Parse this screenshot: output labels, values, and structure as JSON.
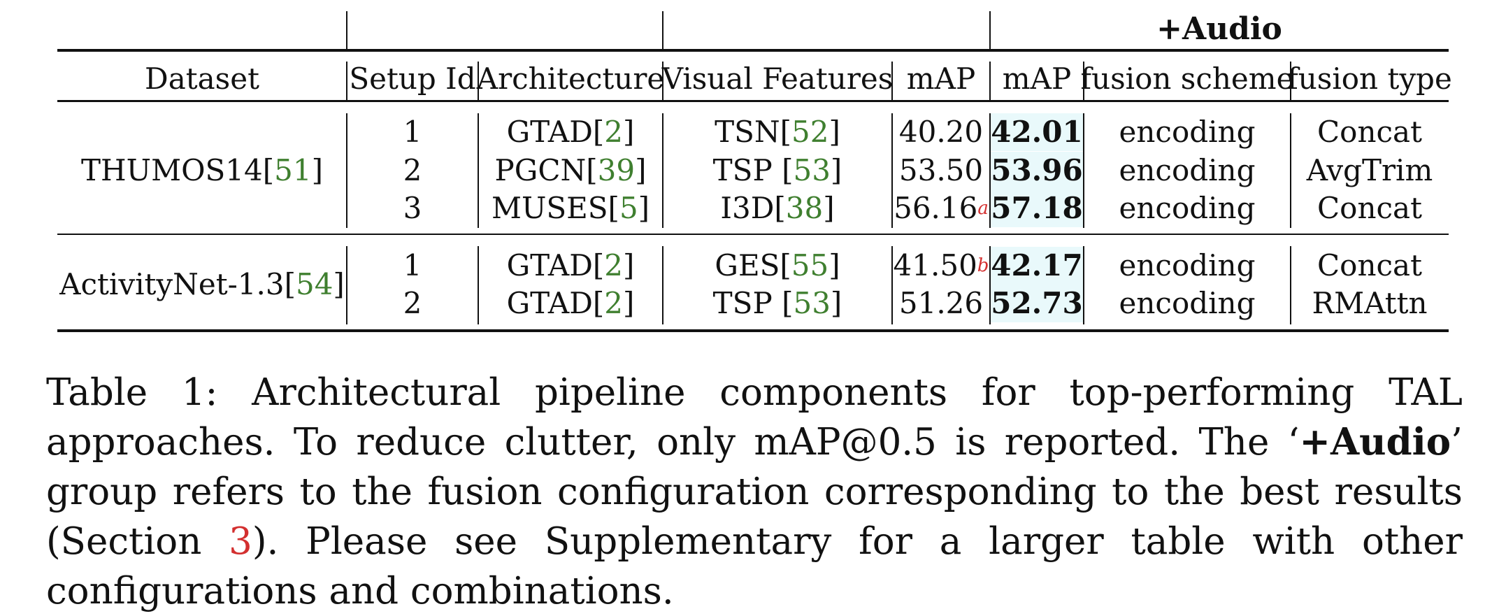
{
  "table": {
    "group_header": "+Audio",
    "headers": {
      "dataset": "Dataset",
      "setup_id": "Setup Id",
      "architecture": "Architecture",
      "visual_features": "Visual Features",
      "map_visual": "mAP",
      "map_audio": "mAP",
      "fusion_scheme": "fusion scheme",
      "fusion_type": "fusion type"
    },
    "groups": [
      {
        "dataset": "THUMOS14",
        "dataset_cite": "51",
        "rows": [
          {
            "setup_id": "1",
            "arch": "GTAD",
            "arch_cite": "2",
            "features": "TSN",
            "features_cite": "52",
            "features_gap": "",
            "map": "40.20",
            "map_note": "",
            "map_audio": "42.01",
            "scheme": "encoding",
            "type": "Concat"
          },
          {
            "setup_id": "2",
            "arch": "PGCN",
            "arch_cite": "39",
            "features": "TSP",
            "features_cite": "53",
            "features_gap": " ",
            "map": "53.50",
            "map_note": "",
            "map_audio": "53.96",
            "scheme": "encoding",
            "type": "AvgTrim"
          },
          {
            "setup_id": "3",
            "arch": "MUSES",
            "arch_cite": "5",
            "features": "I3D",
            "features_cite": "38",
            "features_gap": "",
            "map": "56.16",
            "map_note": "a",
            "map_audio": "57.18",
            "scheme": "encoding",
            "type": "Concat"
          }
        ]
      },
      {
        "dataset": "ActivityNet-1.3",
        "dataset_cite": "54",
        "rows": [
          {
            "setup_id": "1",
            "arch": "GTAD",
            "arch_cite": "2",
            "features": "GES",
            "features_cite": "55",
            "features_gap": "",
            "map": "41.50",
            "map_note": "b",
            "map_audio": "42.17",
            "scheme": "encoding",
            "type": "Concat"
          },
          {
            "setup_id": "2",
            "arch": "GTAD",
            "arch_cite": "2",
            "features": "TSP",
            "features_cite": "53",
            "features_gap": " ",
            "map": "51.26",
            "map_note": "",
            "map_audio": "52.73",
            "scheme": "encoding",
            "type": "RMAttn"
          }
        ]
      }
    ]
  },
  "caption": {
    "prefix": "Table 1: Architectural pipeline components for top-performing TAL approaches. To reduce clutter, only mAP@0.5 is reported. The ‘",
    "bold": "+Audio",
    "middle": "’ group refers to the fusion configuration corresponding to the best results (Section ",
    "section_ref": "3",
    "suffix": "). Please see Supplementary for a larger table with other configurations and combinations."
  }
}
